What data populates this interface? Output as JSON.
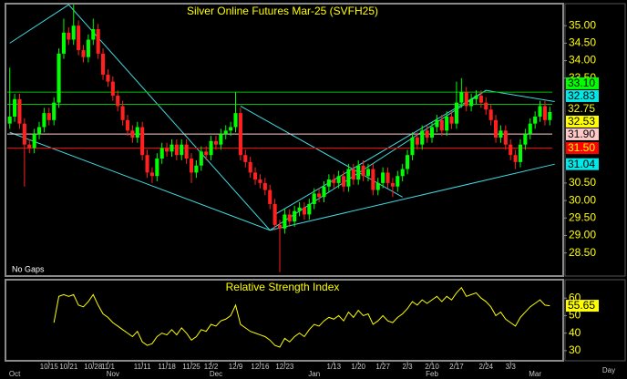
{
  "chart_data": [
    {
      "type": "candlestick",
      "title": "Silver Online Futures Mar-25 (SVFH25)",
      "annotation": "No Gaps",
      "up_color": "#00ff00",
      "down_color": "#ff2020",
      "categories": [
        null,
        null,
        null,
        null,
        null,
        null,
        null,
        null,
        "10/15",
        null,
        null,
        null,
        "10/21",
        null,
        null,
        null,
        null,
        "10/28",
        null,
        null,
        "11/1",
        null,
        null,
        null,
        null,
        null,
        null,
        "11/11",
        null,
        null,
        null,
        null,
        "11/18",
        null,
        null,
        null,
        null,
        "11/25",
        null,
        null,
        null,
        "12/2",
        null,
        null,
        null,
        null,
        "12/9",
        null,
        null,
        null,
        null,
        "12/16",
        null,
        null,
        null,
        null,
        "12/23",
        null,
        null,
        null,
        null,
        null,
        null,
        null,
        null,
        null,
        "1/13",
        null,
        null,
        null,
        null,
        "1/20",
        null,
        null,
        null,
        null,
        "1/27",
        null,
        null,
        null,
        null,
        "2/3",
        null,
        null,
        null,
        null,
        "2/10",
        null,
        null,
        null,
        null,
        "2/17",
        null,
        null,
        null,
        null,
        null,
        "2/24",
        null,
        null,
        null,
        null,
        "3/3",
        null,
        null,
        null,
        null,
        null,
        null,
        null,
        null
      ],
      "month_categories": [
        null,
        "Oct",
        null,
        null,
        null,
        null,
        null,
        null,
        null,
        null,
        null,
        null,
        null,
        null,
        null,
        null,
        null,
        null,
        null,
        null,
        null,
        "Nov",
        null,
        null,
        null,
        null,
        null,
        null,
        null,
        null,
        null,
        null,
        null,
        null,
        null,
        null,
        null,
        null,
        null,
        null,
        null,
        null,
        "Dec",
        null,
        null,
        null,
        null,
        null,
        null,
        null,
        null,
        null,
        null,
        null,
        null,
        null,
        null,
        null,
        null,
        null,
        null,
        null,
        "Jan",
        null,
        null,
        null,
        null,
        null,
        null,
        null,
        null,
        null,
        null,
        null,
        null,
        null,
        null,
        null,
        null,
        null,
        null,
        null,
        null,
        null,
        null,
        null,
        "Feb",
        null,
        null,
        null,
        null,
        null,
        null,
        null,
        null,
        null,
        null,
        null,
        null,
        null,
        null,
        null,
        null,
        null,
        null,
        null,
        null,
        "Mar",
        null,
        null,
        null
      ],
      "open": [
        32.2,
        32.4,
        32.9,
        32.2,
        31.6,
        31.5,
        31.9,
        32.1,
        32.5,
        32.3,
        32.8,
        34.2,
        34.8,
        34.6,
        35.0,
        34.3,
        34.1,
        34.6,
        34.9,
        34.2,
        33.6,
        33.4,
        33.0,
        32.7,
        32.3,
        32.0,
        31.8,
        32.1,
        31.3,
        30.8,
        30.7,
        31.2,
        31.5,
        31.4,
        31.6,
        31.3,
        31.6,
        31.2,
        30.8,
        31.0,
        31.4,
        31.3,
        31.7,
        31.6,
        31.9,
        32.0,
        32.1,
        32.5,
        31.3,
        31.1,
        30.8,
        30.6,
        30.5,
        30.3,
        29.9,
        29.3,
        29.2,
        29.6,
        29.4,
        29.7,
        29.8,
        29.6,
        29.9,
        30.2,
        30.1,
        30.4,
        30.6,
        30.5,
        30.7,
        30.4,
        30.9,
        30.6,
        31.0,
        30.7,
        30.9,
        30.3,
        30.5,
        30.8,
        30.5,
        30.4,
        30.7,
        30.9,
        31.3,
        31.8,
        31.6,
        32.0,
        31.8,
        32.1,
        32.3,
        32.0,
        32.4,
        32.2,
        32.8,
        33.1,
        32.7,
        32.9,
        33.0,
        32.8,
        32.6,
        32.3,
        31.8,
        32.0,
        31.6,
        31.3,
        31.1,
        31.6,
        31.9,
        32.2,
        32.4,
        32.7,
        32.3
      ],
      "high": [
        33.8,
        33.05,
        33.05,
        32.35,
        31.75,
        32.05,
        32.25,
        32.65,
        32.65,
        32.95,
        34.35,
        35.2,
        34.95,
        35.6,
        35.15,
        34.45,
        34.75,
        35.2,
        35.05,
        34.35,
        33.75,
        33.55,
        33.15,
        32.85,
        32.45,
        32.15,
        32.25,
        32.25,
        31.45,
        30.95,
        31.35,
        31.65,
        31.65,
        31.75,
        31.75,
        31.75,
        31.75,
        31.35,
        31.15,
        31.55,
        31.55,
        31.85,
        31.85,
        32.05,
        32.15,
        32.25,
        33.1,
        32.65,
        31.45,
        31.25,
        30.95,
        30.75,
        30.65,
        30.45,
        30.05,
        29.45,
        29.75,
        29.75,
        29.85,
        29.95,
        29.95,
        30.05,
        30.35,
        30.35,
        30.55,
        30.75,
        30.75,
        30.85,
        30.85,
        31.05,
        31.05,
        31.15,
        31.15,
        31.05,
        31.05,
        30.65,
        30.95,
        30.95,
        30.65,
        30.85,
        31.05,
        31.45,
        31.95,
        31.95,
        32.15,
        32.15,
        32.25,
        32.45,
        32.45,
        32.55,
        32.55,
        33.4,
        33.5,
        33.25,
        33.05,
        33.15,
        33.15,
        32.95,
        32.75,
        32.45,
        32.15,
        32.15,
        31.75,
        31.45,
        31.75,
        32.05,
        32.35,
        32.55,
        32.85,
        32.85,
        32.68
      ],
      "low": [
        32.05,
        32.25,
        32.05,
        30.4,
        31.35,
        31.35,
        31.75,
        31.95,
        32.15,
        32.15,
        32.65,
        34.05,
        34.45,
        34.45,
        34.15,
        33.95,
        33.95,
        34.45,
        34.05,
        33.45,
        33.25,
        32.85,
        32.55,
        32.15,
        31.85,
        31.65,
        31.65,
        31.15,
        30.65,
        30.5,
        30.55,
        31.05,
        31.25,
        31.25,
        31.15,
        31.15,
        31.05,
        30.5,
        30.65,
        30.85,
        31.15,
        31.15,
        31.45,
        31.45,
        31.75,
        31.85,
        31.95,
        31.15,
        30.95,
        30.65,
        30.45,
        30.35,
        30.15,
        29.75,
        29.15,
        27.95,
        29.05,
        29.25,
        29.25,
        29.55,
        29.45,
        29.45,
        29.75,
        29.95,
        29.95,
        30.25,
        30.35,
        30.35,
        30.25,
        30.25,
        30.45,
        30.45,
        30.55,
        30.55,
        30.15,
        30.15,
        30.35,
        30.35,
        30.1,
        30.25,
        30.55,
        30.75,
        31.15,
        31.45,
        31.45,
        31.65,
        31.65,
        31.95,
        31.85,
        31.85,
        32.05,
        32.05,
        32.65,
        32.55,
        32.55,
        32.75,
        32.65,
        32.45,
        32.15,
        31.65,
        31.65,
        31.45,
        31.15,
        30.9,
        30.95,
        31.45,
        31.75,
        32.05,
        32.25,
        32.15,
        32.15
      ],
      "close": [
        32.4,
        32.9,
        32.2,
        31.6,
        31.5,
        31.9,
        32.1,
        32.5,
        32.3,
        32.8,
        34.2,
        34.8,
        34.6,
        35.0,
        34.3,
        34.1,
        34.6,
        34.9,
        34.2,
        33.6,
        33.4,
        33.0,
        32.7,
        32.3,
        32.0,
        31.8,
        32.1,
        31.3,
        30.8,
        30.7,
        31.2,
        31.5,
        31.4,
        31.6,
        31.3,
        31.6,
        31.2,
        30.8,
        31.0,
        31.4,
        31.3,
        31.7,
        31.6,
        31.9,
        32.0,
        32.1,
        32.5,
        31.3,
        31.1,
        30.8,
        30.6,
        30.5,
        30.3,
        29.9,
        29.3,
        29.2,
        29.6,
        29.4,
        29.7,
        29.8,
        29.6,
        29.9,
        30.2,
        30.1,
        30.4,
        30.6,
        30.5,
        30.7,
        30.4,
        30.9,
        30.6,
        31.0,
        30.7,
        30.9,
        30.3,
        30.5,
        30.8,
        30.5,
        30.4,
        30.7,
        30.9,
        31.3,
        31.8,
        31.6,
        32.0,
        31.8,
        32.1,
        32.3,
        32.0,
        32.4,
        32.2,
        32.8,
        33.1,
        32.7,
        32.9,
        33.0,
        32.8,
        32.6,
        32.3,
        31.8,
        32.0,
        31.6,
        31.3,
        31.1,
        31.6,
        31.9,
        32.2,
        32.4,
        32.7,
        32.3,
        32.53
      ],
      "ylim": [
        27.84,
        35.63
      ],
      "yticks": [
        {
          "value": 35,
          "label": "35.00"
        },
        {
          "value": 34.5,
          "label": "34.50"
        },
        {
          "value": 34,
          "label": "34.00"
        },
        {
          "value": 33.5,
          "label": "33.50"
        },
        {
          "value": 30.5,
          "label": "30.50"
        },
        {
          "value": 30,
          "label": "30.00"
        },
        {
          "value": 29.5,
          "label": "29.50"
        },
        {
          "value": 29,
          "label": "29.00"
        },
        {
          "value": 28.5,
          "label": "28.50"
        }
      ],
      "markers": [
        {
          "value": 33.1,
          "label": "33.10",
          "background": "#00ff00",
          "text_color": "#000000",
          "line_color": "#00c000"
        },
        {
          "value": 32.83,
          "label": "32.83",
          "background": "#00e8e8",
          "text_color": "#000000"
        },
        {
          "value": 32.75,
          "label": "32.75",
          "background": "#000000",
          "text_color": "#ffff00",
          "line_color": "#00c000"
        },
        {
          "value": 32.53,
          "label": "32.53",
          "background": "#ffff00",
          "text_color": "#000000"
        },
        {
          "value": 31.9,
          "label": "31.90",
          "background": "#ffc8c8",
          "text_color": "#000000",
          "line_color": "#ffd0d0"
        },
        {
          "value": 31.5,
          "label": "31.50",
          "background": "#ff0000",
          "text_color": "#ffff00",
          "line_color": "#ff0000"
        },
        {
          "value": 31.04,
          "label": "31.04",
          "background": "#00e8e8",
          "text_color": "#000000"
        }
      ],
      "trendline_color": "#40d8e0",
      "trendlines": [
        {
          "points": [
            [
              0,
              34.5
            ],
            [
              12,
              35.6
            ],
            [
              53,
              29.15
            ],
            [
              97,
              33.15
            ],
            [
              111,
              32.83
            ]
          ]
        },
        {
          "points": [
            [
              0,
              31.95
            ],
            [
              53,
              29.15
            ],
            [
              111,
              31.04
            ]
          ]
        },
        {
          "points": [
            [
              47,
              32.7
            ],
            [
              80,
              30.1
            ]
          ]
        },
        {
          "points": [
            [
              54,
              29.6
            ],
            [
              97,
              33.15
            ]
          ]
        }
      ]
    },
    {
      "type": "line",
      "title": "Relative Strength Index",
      "x_label": "Day",
      "color": "#ffff00",
      "values": [
        null,
        null,
        null,
        null,
        null,
        null,
        null,
        null,
        null,
        46,
        61,
        62,
        61,
        62,
        56,
        55,
        58,
        62,
        56,
        51,
        49,
        46,
        44,
        42,
        40,
        38,
        41,
        35,
        33,
        34,
        38,
        40,
        39,
        42,
        39,
        43,
        40,
        36,
        38,
        42,
        41,
        45,
        44,
        47,
        48,
        50,
        56,
        45,
        43,
        41,
        40,
        39,
        38,
        36,
        33,
        32,
        37,
        35,
        38,
        40,
        38,
        42,
        45,
        44,
        47,
        49,
        48,
        50,
        47,
        52,
        49,
        53,
        50,
        51,
        45,
        47,
        50,
        47,
        46,
        49,
        51,
        54,
        58,
        56,
        59,
        57,
        59,
        61,
        58,
        61,
        59,
        63,
        66,
        61,
        62,
        63,
        60,
        58,
        55,
        50,
        52,
        48,
        46,
        44,
        49,
        52,
        55,
        57,
        59,
        56,
        55.65
      ],
      "ylim": [
        24.2,
        70
      ],
      "yticks": [
        60,
        50,
        40,
        30
      ],
      "markers": [
        {
          "value": 55.65,
          "label": "55.65",
          "background": "#ffff00",
          "text_color": "#000000"
        }
      ]
    }
  ]
}
